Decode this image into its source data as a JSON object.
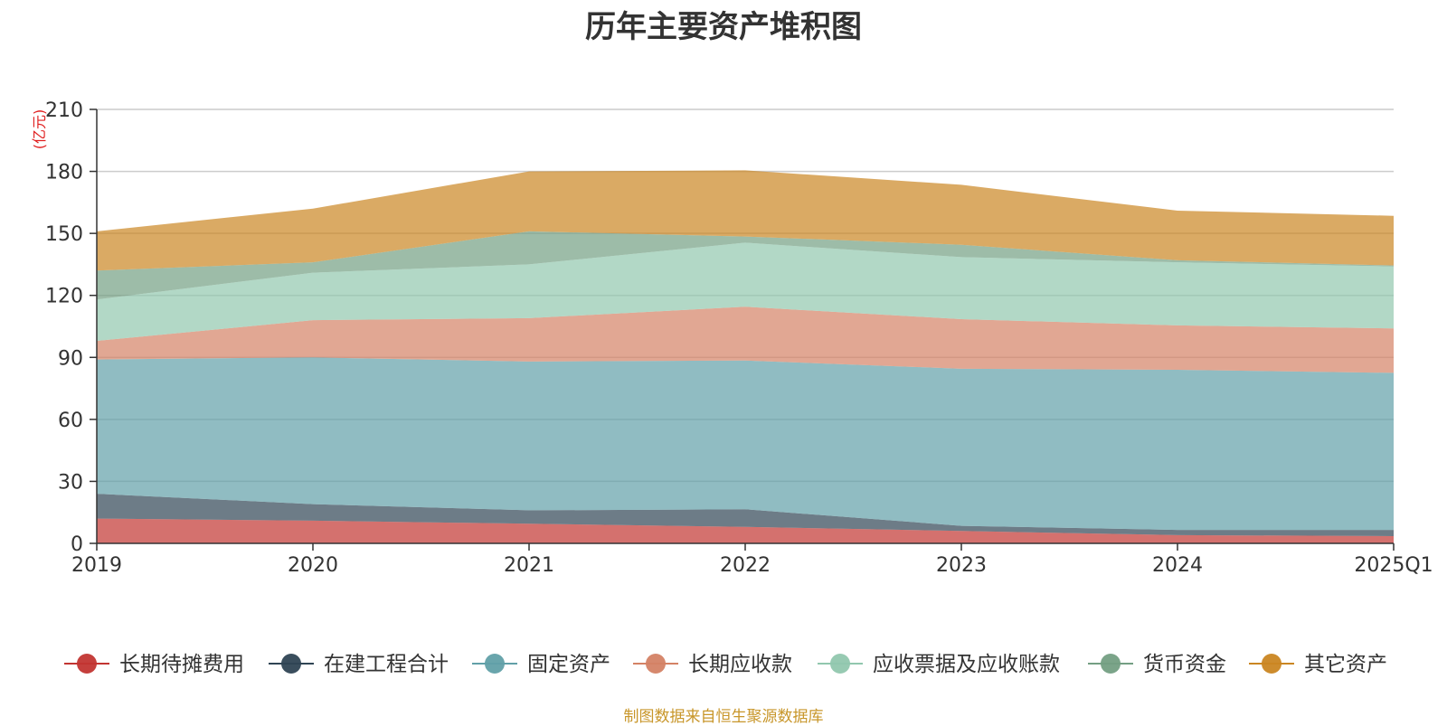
{
  "chart_data": {
    "type": "area",
    "stacked": true,
    "title": "历年主要资产堆积图",
    "unit_label": "(亿元)",
    "categories": [
      "2019",
      "2020",
      "2021",
      "2022",
      "2023",
      "2024",
      "2025Q1"
    ],
    "ylim": [
      0,
      210
    ],
    "yticks": [
      0,
      30,
      60,
      90,
      120,
      150,
      180,
      210
    ],
    "grid": true,
    "legend_position": "bottom",
    "series": [
      {
        "name": "长期待摊费用",
        "color": "#c23531",
        "values": [
          12,
          11,
          9.5,
          8,
          6,
          4,
          3.5
        ]
      },
      {
        "name": "在建工程合计",
        "color": "#2f4554",
        "values": [
          12,
          8,
          6.5,
          8.5,
          2.5,
          2.5,
          3
        ]
      },
      {
        "name": "固定资产",
        "color": "#61a0a8",
        "values": [
          65,
          71,
          72,
          72,
          76,
          77.5,
          76
        ]
      },
      {
        "name": "长期应收款",
        "color": "#d48265",
        "values": [
          9,
          18,
          21,
          26,
          24,
          21.5,
          21.5
        ]
      },
      {
        "name": "应收票据及应收账款",
        "color": "#91c7ae",
        "values": [
          20,
          23,
          26,
          31,
          30,
          30.5,
          30
        ]
      },
      {
        "name": "货币资金",
        "color": "#749f83",
        "values": [
          14,
          5,
          16,
          3,
          6,
          1,
          0.5
        ]
      },
      {
        "name": "其它资产",
        "color": "#ca8622",
        "values": [
          19,
          26,
          29,
          32,
          29,
          24,
          24
        ]
      }
    ]
  },
  "source_note": "制图数据来自恒生聚源数据库"
}
